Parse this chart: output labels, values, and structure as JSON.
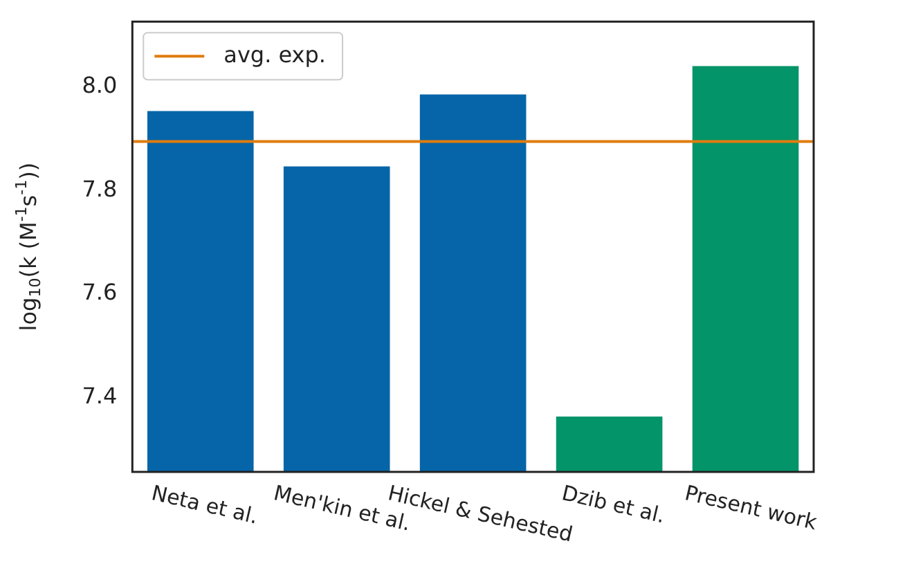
{
  "chart_data": {
    "type": "bar",
    "ylabel": "log$_{10}$(k (M$^{-1}$s$^{-1}$))",
    "categories": [
      "Neta et al.",
      "Men'kin et al.",
      "Hickel & Sehested",
      "Dzib et al.",
      "Present work"
    ],
    "values": [
      7.954,
      7.847,
      7.986,
      7.363,
      8.041
    ],
    "colors": [
      "#0565a8",
      "#0565a8",
      "#0565a8",
      "#039469",
      "#039469"
    ],
    "ylim": [
      7.256,
      8.127
    ],
    "yticks": [
      {
        "value": 7.4,
        "label": "7.4"
      },
      {
        "value": 7.6,
        "label": "7.6"
      },
      {
        "value": 7.8,
        "label": "7.8"
      },
      {
        "value": 8,
        "label": "8.0"
      }
    ],
    "ref_lines": [
      {
        "axis": "y",
        "value": 7.895,
        "label": "avg. exp.",
        "color": "#e07d0e"
      }
    ],
    "legend": "top left",
    "grid": false
  }
}
